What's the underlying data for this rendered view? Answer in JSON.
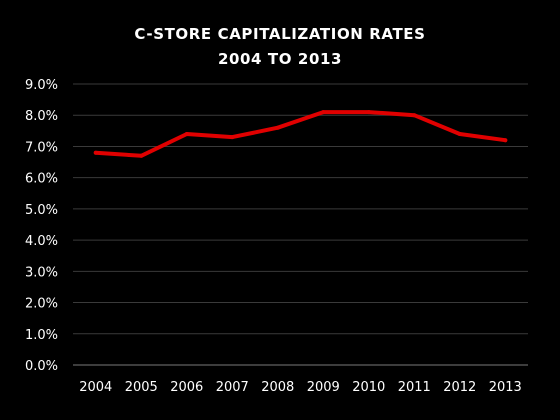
{
  "chart_data": {
    "type": "line",
    "title": "C-STORE CAPITALIZATION RATES",
    "subtitle": "2004 TO 2013",
    "xlabel": "",
    "ylabel": "",
    "categories": [
      "2004",
      "2005",
      "2006",
      "2007",
      "2008",
      "2009",
      "2010",
      "2011",
      "2012",
      "2013"
    ],
    "series": [
      {
        "values": [
          6.8,
          6.7,
          7.4,
          7.3,
          7.6,
          8.1,
          8.1,
          8.0,
          7.4,
          7.2
        ]
      }
    ],
    "ylim": [
      0,
      9
    ],
    "yticks": [
      "0.0%",
      "1.0%",
      "2.0%",
      "3.0%",
      "4.0%",
      "5.0%",
      "6.0%",
      "7.0%",
      "8.0%",
      "9.0%"
    ],
    "grid": true,
    "legend": "none",
    "colors": {
      "background": "#000000",
      "line": "#e00000",
      "text": "#ffffff",
      "grid": "#3a3a3a"
    }
  }
}
